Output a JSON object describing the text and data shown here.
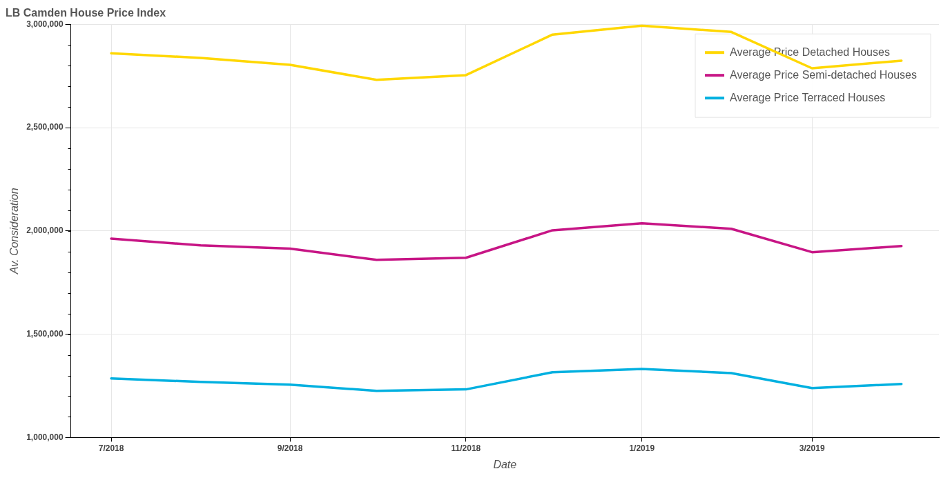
{
  "chart_data": {
    "type": "line",
    "title": "LB Camden House Price Index",
    "xlabel": "Date",
    "ylabel": "Av. Consideration",
    "x": [
      "2018-07-01",
      "2018-08-01",
      "2018-09-01",
      "2018-10-01",
      "2018-11-01",
      "2018-12-01",
      "2019-01-01",
      "2019-02-01",
      "2019-03-01",
      "2019-04-01"
    ],
    "series": [
      {
        "name": "Average Price Detached Houses",
        "color": "#ffd700",
        "values": [
          2860000,
          2837000,
          2804000,
          2731000,
          2754000,
          2950000,
          2993000,
          2963000,
          2787000,
          2824000
        ]
      },
      {
        "name": "Average Price Semi-detached Houses",
        "color": "#c71585",
        "values": [
          1963000,
          1930000,
          1914000,
          1860000,
          1870000,
          2003000,
          2037000,
          2010000,
          1897000,
          1927000
        ]
      },
      {
        "name": "Average Price Terraced Houses",
        "color": "#00b0e0",
        "values": [
          1286000,
          1269000,
          1256000,
          1226000,
          1233000,
          1316000,
          1332000,
          1312000,
          1239000,
          1259000
        ]
      }
    ],
    "xlim": [
      "2018-06-17",
      "2019-04-14"
    ],
    "xticks": [
      {
        "value": "2018-07",
        "label": "7/2018"
      },
      {
        "value": "2018-09",
        "label": "9/2018"
      },
      {
        "value": "2018-11",
        "label": "11/2018"
      },
      {
        "value": "2019-01",
        "label": "1/2019"
      },
      {
        "value": "2019-03",
        "label": "3/2019"
      }
    ],
    "ylim": [
      1000000,
      3000000
    ],
    "yticks": [
      {
        "value": 1000000,
        "label": "1,000,000"
      },
      {
        "value": 1500000,
        "label": "1,500,000"
      },
      {
        "value": 2000000,
        "label": "2,000,000"
      },
      {
        "value": 2500000,
        "label": "2,500,000"
      },
      {
        "value": 3000000,
        "label": "3,000,000"
      }
    ],
    "grid": true,
    "legend": "top right",
    "marker": "none",
    "line_style": "solid"
  }
}
